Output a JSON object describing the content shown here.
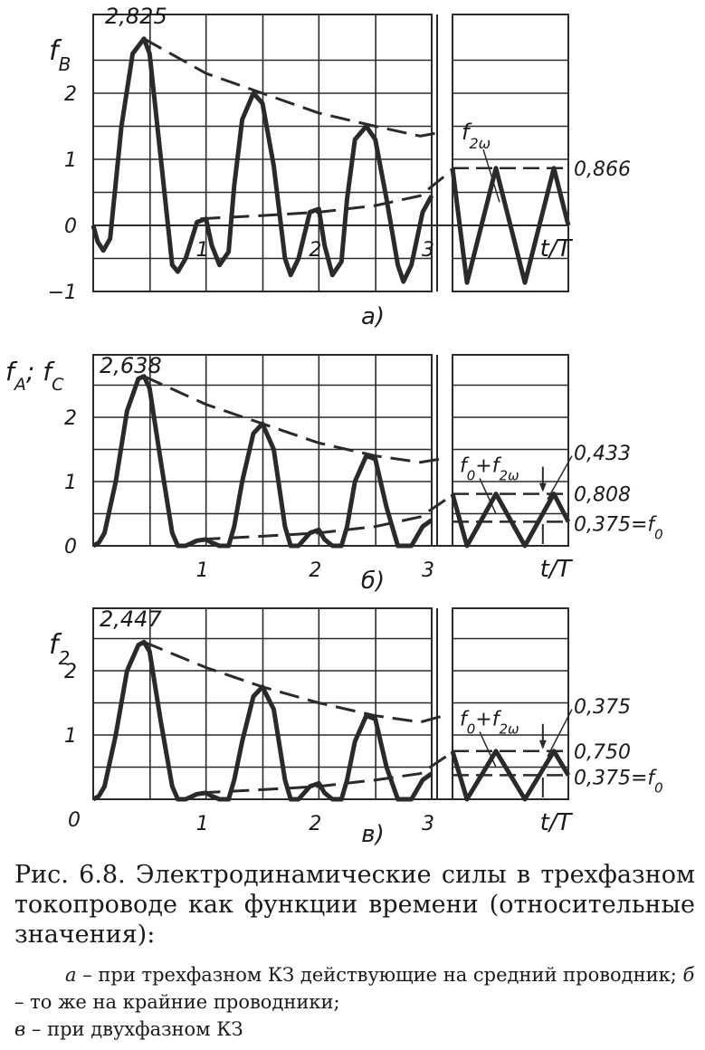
{
  "chart_data": [
    {
      "type": "line",
      "panel_label": "а)",
      "ylabel": "f_B",
      "ylabel_main": "f",
      "ylabel_sub": "B",
      "xlabel": "t/T",
      "ylim": [
        -1,
        3
      ],
      "yticks": [
        -1,
        0,
        1,
        2
      ],
      "xticks": [
        1,
        2,
        3
      ],
      "peak_label": "2,825",
      "steady_label": "0,866",
      "component_label": "f",
      "component_sub": "2ω",
      "series": [
        {
          "x": [
            0,
            0.04,
            0.09,
            0.15,
            0.25,
            0.35,
            0.45,
            0.5,
            0.6,
            0.7,
            0.75,
            0.82,
            0.92,
            1.0,
            1.05,
            1.12,
            1.2,
            1.25,
            1.32,
            1.42,
            1.5,
            1.6,
            1.7,
            1.75,
            1.82,
            1.92,
            2.0,
            2.05,
            2.12,
            2.2,
            2.25,
            2.32,
            2.42,
            2.5,
            2.6,
            2.7,
            2.75,
            2.82,
            2.92,
            3.0
          ],
          "y": [
            0,
            -0.25,
            -0.38,
            -0.2,
            1.5,
            2.6,
            2.825,
            2.6,
            1.0,
            -0.6,
            -0.7,
            -0.5,
            0.05,
            0.1,
            -0.3,
            -0.6,
            -0.4,
            0.6,
            1.6,
            2.0,
            1.85,
            0.9,
            -0.5,
            -0.75,
            -0.5,
            0.2,
            0.25,
            -0.3,
            -0.75,
            -0.55,
            0.4,
            1.3,
            1.5,
            1.3,
            0.4,
            -0.6,
            -0.85,
            -0.6,
            0.2,
            0.45
          ]
        },
        {
          "name": "f_2ω",
          "x": [
            0,
            0.125,
            0.375,
            0.625,
            0.875,
            1.0
          ],
          "y": [
            0.866,
            -0.866,
            0.866,
            -0.866,
            0.866,
            0.0
          ]
        }
      ],
      "upper_envelope": {
        "x": [
          0.45,
          1.0,
          1.5,
          2.0,
          2.5,
          2.9
        ],
        "y": [
          2.825,
          2.3,
          2.0,
          1.7,
          1.5,
          1.35
        ]
      },
      "lower_envelope": {
        "x": [
          0.95,
          1.5,
          2.0,
          2.5,
          2.9
        ],
        "y": [
          0.1,
          0.15,
          0.2,
          0.3,
          0.45
        ]
      },
      "steady_level": 0.866
    },
    {
      "type": "line",
      "panel_label": "б)",
      "ylabel": "f_A; f_C",
      "ylabel_main": "f",
      "ylabel_sub": "A",
      "ylabel_mid": "; f",
      "ylabel_sub2": "C",
      "xlabel": "t/T",
      "ylim": [
        0,
        3
      ],
      "yticks": [
        0,
        1,
        2
      ],
      "xticks": [
        1,
        2,
        3
      ],
      "peak_label": "2,638",
      "label_0433": "0,433",
      "label_0808": "0,808",
      "label_f0": "0,375=f",
      "label_f0_sub": "0",
      "component_label_a": "f",
      "component_label_a_sub": "0",
      "component_label_b": "+f",
      "component_label_b_sub": "2ω",
      "series": [
        {
          "x": [
            0,
            0.05,
            0.1,
            0.2,
            0.3,
            0.4,
            0.45,
            0.5,
            0.6,
            0.7,
            0.75,
            0.82,
            0.92,
            1.0,
            1.05,
            1.12,
            1.2,
            1.25,
            1.32,
            1.42,
            1.5,
            1.6,
            1.7,
            1.75,
            1.82,
            1.92,
            2.0,
            2.05,
            2.12,
            2.2,
            2.25,
            2.32,
            2.42,
            2.5,
            2.6,
            2.7,
            2.75,
            2.82,
            2.92,
            3.0
          ],
          "y": [
            0,
            0.05,
            0.2,
            1.0,
            2.1,
            2.6,
            2.638,
            2.45,
            1.3,
            0.2,
            0.0,
            0.0,
            0.08,
            0.1,
            0.05,
            0.0,
            0.0,
            0.3,
            1.0,
            1.75,
            1.9,
            1.5,
            0.3,
            0.0,
            0.0,
            0.2,
            0.25,
            0.1,
            0.0,
            0.0,
            0.3,
            1.0,
            1.4,
            1.35,
            0.6,
            0.0,
            0.0,
            0.0,
            0.3,
            0.4
          ]
        },
        {
          "name": "f_0+f_2ω",
          "x": [
            0,
            0.125,
            0.375,
            0.625,
            0.875,
            1.0
          ],
          "y": [
            0.808,
            0.0,
            0.808,
            0.0,
            0.808,
            0.375
          ]
        }
      ],
      "upper_envelope": {
        "x": [
          0.45,
          1.0,
          1.5,
          2.0,
          2.5,
          2.9
        ],
        "y": [
          2.638,
          2.2,
          1.9,
          1.6,
          1.4,
          1.3
        ]
      },
      "lower_envelope": {
        "x": [
          0.95,
          1.5,
          2.0,
          2.5,
          2.9
        ],
        "y": [
          0.1,
          0.15,
          0.2,
          0.3,
          0.45
        ]
      },
      "steady_level": 0.808,
      "mean_level": 0.375
    },
    {
      "type": "line",
      "panel_label": "в)",
      "ylabel": "f_2",
      "ylabel_main": "f",
      "ylabel_sub": "2",
      "xlabel": "t/T",
      "ylim": [
        0,
        3
      ],
      "yticks": [
        0,
        1,
        2
      ],
      "xticks": [
        0,
        1,
        2,
        3
      ],
      "peak_label": "2,447",
      "label_0375_top": "0,375",
      "label_0750": "0,750",
      "label_f0": "0,375=f",
      "label_f0_sub": "0",
      "component_label_a": "f",
      "component_label_a_sub": "0",
      "component_label_b": "+f",
      "component_label_b_sub": "2ω",
      "series": [
        {
          "x": [
            0,
            0.05,
            0.1,
            0.2,
            0.3,
            0.4,
            0.45,
            0.5,
            0.6,
            0.7,
            0.75,
            0.82,
            0.92,
            1.0,
            1.05,
            1.12,
            1.2,
            1.25,
            1.32,
            1.42,
            1.5,
            1.6,
            1.7,
            1.75,
            1.82,
            1.92,
            2.0,
            2.05,
            2.12,
            2.2,
            2.25,
            2.32,
            2.42,
            2.5,
            2.6,
            2.7,
            2.75,
            2.82,
            2.92,
            3.0
          ],
          "y": [
            0,
            0.05,
            0.2,
            1.0,
            2.0,
            2.4,
            2.447,
            2.3,
            1.2,
            0.2,
            0.0,
            0.0,
            0.08,
            0.1,
            0.05,
            0.0,
            0.0,
            0.3,
            0.9,
            1.6,
            1.75,
            1.4,
            0.3,
            0.0,
            0.0,
            0.2,
            0.25,
            0.1,
            0.0,
            0.0,
            0.3,
            0.9,
            1.3,
            1.25,
            0.5,
            0.0,
            0.0,
            0.0,
            0.3,
            0.4
          ]
        },
        {
          "name": "f_0+f_2ω",
          "x": [
            0,
            0.125,
            0.375,
            0.625,
            0.875,
            1.0
          ],
          "y": [
            0.75,
            0.0,
            0.75,
            0.0,
            0.75,
            0.375
          ]
        }
      ],
      "upper_envelope": {
        "x": [
          0.45,
          1.0,
          1.5,
          2.0,
          2.5,
          2.9
        ],
        "y": [
          2.447,
          2.05,
          1.75,
          1.5,
          1.3,
          1.2
        ]
      },
      "lower_envelope": {
        "x": [
          0.95,
          1.5,
          2.0,
          2.5,
          2.9
        ],
        "y": [
          0.1,
          0.15,
          0.2,
          0.3,
          0.4
        ]
      },
      "steady_level": 0.75,
      "mean_level": 0.375
    }
  ],
  "caption": {
    "main": "Рис. 6.8. Электродинамические силы в трехфазном токопроводе как функции времени (относительные значения):",
    "legend_a_letter": "а",
    "legend_a_text": " – при трехфазном КЗ действующие на средний проводник; ",
    "legend_b_letter": "б",
    "legend_b_text": " – то же на крайние проводники;",
    "legend_c_letter": "в",
    "legend_c_text": " – при двухфазном КЗ"
  }
}
